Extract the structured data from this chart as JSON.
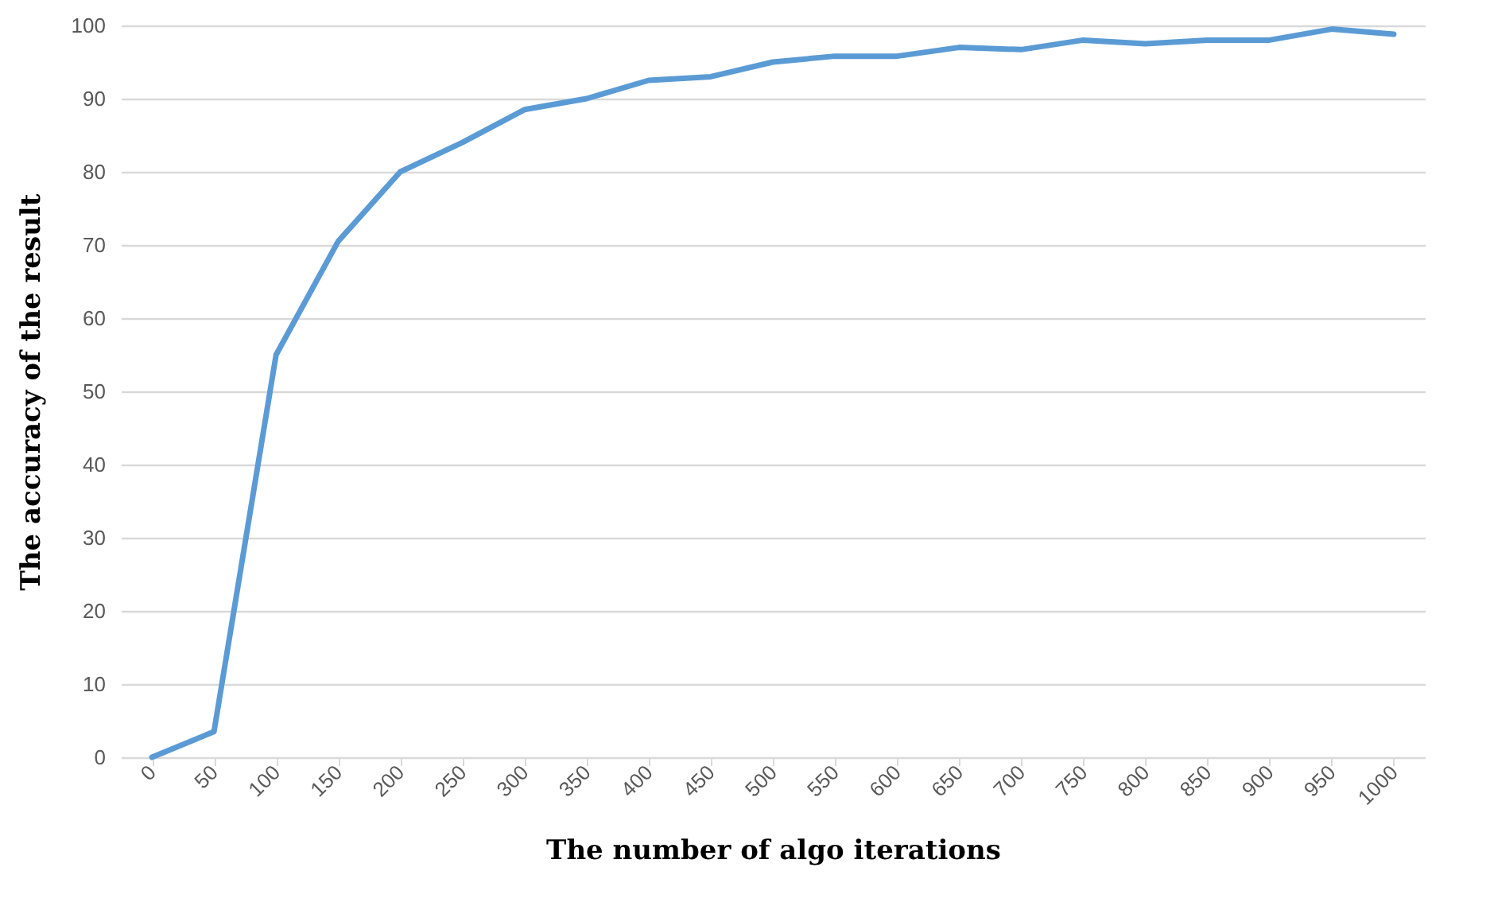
{
  "chart_data": {
    "type": "line",
    "xlabel": "The number of algo iterations",
    "ylabel": "The accuracy of the result",
    "categories": [
      "0",
      "50",
      "100",
      "150",
      "200",
      "250",
      "300",
      "350",
      "400",
      "450",
      "500",
      "550",
      "600",
      "650",
      "700",
      "750",
      "800",
      "850",
      "900",
      "950",
      "1000"
    ],
    "series": [
      {
        "color": "#5b9bd5",
        "values": [
          0,
          3.5,
          55,
          70.5,
          80,
          84,
          88.5,
          90,
          92.5,
          93,
          95,
          95.8,
          95.8,
          97,
          96.7,
          98,
          97.5,
          98,
          98,
          99.5,
          98.8
        ]
      }
    ],
    "ylim": [
      0,
      100
    ],
    "yticks": [
      0,
      10,
      20,
      30,
      40,
      50,
      60,
      70,
      80,
      90,
      100
    ],
    "grid": "y",
    "legend": false,
    "marker": "none",
    "line_style": "solid"
  }
}
